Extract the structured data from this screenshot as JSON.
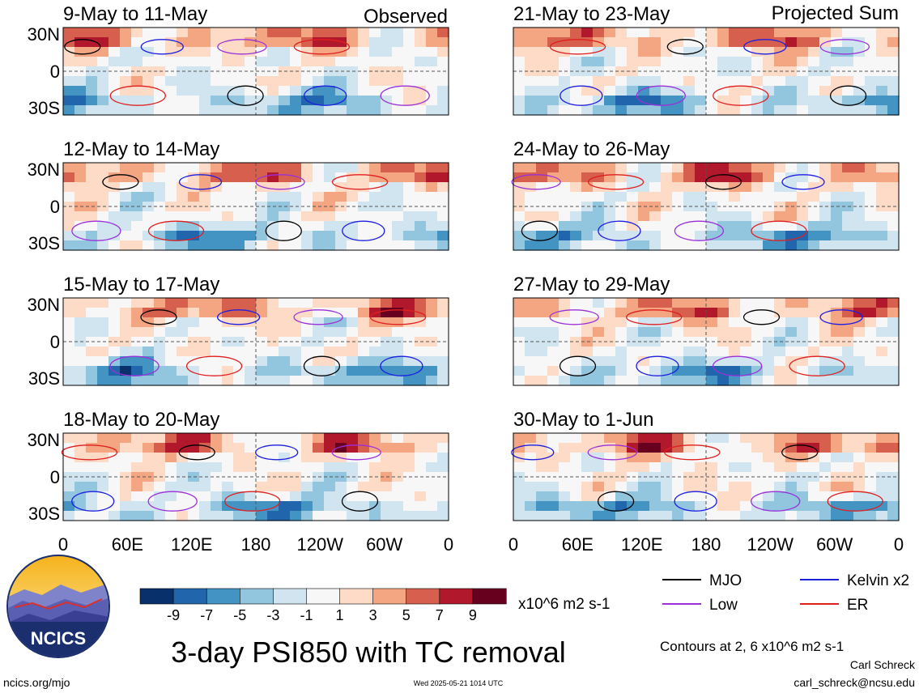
{
  "panel_label_left": "Observed",
  "panel_label_right": "Projected Sum",
  "chart_data": {
    "type": "heatmap",
    "title": "3-day PSI850 with TC removal",
    "unit_label": "x10^6 m2 s-1",
    "y_ticks": [
      "30N",
      "0",
      "30S"
    ],
    "x_ticks": [
      "0",
      "60E",
      "120E",
      "180",
      "120W",
      "60W",
      "0"
    ],
    "ylim": [
      -40,
      40
    ],
    "xlim": [
      0,
      360
    ],
    "colorbar": {
      "labels": [
        "-9",
        "-7",
        "-5",
        "-3",
        "-1",
        "1",
        "3",
        "5",
        "7",
        "9"
      ],
      "colors": [
        "#08306b",
        "#2166ac",
        "#4393c3",
        "#92c5de",
        "#d1e5f0",
        "#f7f7f7",
        "#fddbc7",
        "#f4a582",
        "#d6604d",
        "#b2182b",
        "#67001f"
      ]
    },
    "panels": [
      {
        "period": "9-May to 11-May",
        "group": "Observed"
      },
      {
        "period": "12-May to 14-May",
        "group": "Observed"
      },
      {
        "period": "15-May to 17-May",
        "group": "Observed"
      },
      {
        "period": "18-May to 20-May",
        "group": "Observed"
      },
      {
        "period": "21-May to 23-May",
        "group": "Projected Sum"
      },
      {
        "period": "24-May to 26-May",
        "group": "Projected Sum"
      },
      {
        "period": "27-May to 29-May",
        "group": "Projected Sum"
      },
      {
        "period": "30-May to 1-Jun",
        "group": "Projected Sum"
      }
    ],
    "legend": [
      {
        "label": "MJO",
        "color": "#000000"
      },
      {
        "label": "Kelvin x2",
        "color": "#1f1fe0"
      },
      {
        "label": "Low",
        "color": "#9b30d9"
      },
      {
        "label": "ER",
        "color": "#e01f1f"
      }
    ],
    "contour_note": "Contours at 2, 6 x10^6 m2 s-1"
  },
  "logo_text": "NCICS",
  "footer": {
    "url": "ncics.org/mjo",
    "timestamp": "Wed 2025-05-21 1014 UTC",
    "author": "Carl Schreck",
    "email": "carl_schreck@ncsu.edu"
  }
}
